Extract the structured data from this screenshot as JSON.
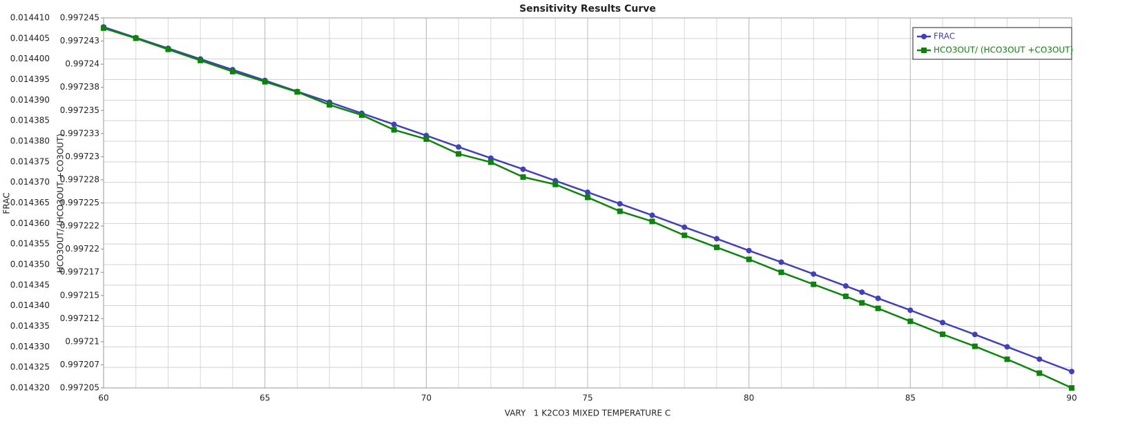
{
  "chart_data": {
    "type": "line",
    "title": "Sensitivity Results Curve",
    "x_label": "VARY   1 K2CO3 MIXED TEMPERATURE C",
    "y_label": "FRAC",
    "y2_label": "HCO3OUT/ (HCO3OUT +CO3OUT)",
    "x": [
      60,
      61,
      62,
      63,
      64,
      65,
      66,
      67,
      68,
      69,
      70,
      71,
      72,
      73,
      74,
      75,
      76,
      77,
      78,
      79,
      80,
      81,
      82,
      83,
      83.5,
      84,
      85,
      86,
      87,
      88,
      89,
      90
    ],
    "xlim": [
      60,
      90
    ],
    "xticks": [
      60,
      65,
      70,
      75,
      80,
      85,
      90
    ],
    "ylim": [
      0.01432,
      0.01441
    ],
    "yticks": [
      {
        "value": 0.01432,
        "label": "0.014320"
      },
      0.014325,
      {
        "value": 0.01433,
        "label": "0.014330"
      },
      0.014335,
      {
        "value": 0.01434,
        "label": "0.014340"
      },
      0.014345,
      {
        "value": 0.01435,
        "label": "0.014350"
      },
      0.014355,
      {
        "value": 0.01436,
        "label": "0.014360"
      },
      0.014365,
      {
        "value": 0.01437,
        "label": "0.014370"
      },
      0.014375,
      {
        "value": 0.01438,
        "label": "0.014380"
      },
      0.014385,
      {
        "value": 0.01439,
        "label": "0.014390"
      },
      0.014395,
      {
        "value": 0.0144,
        "label": "0.014400"
      },
      0.014405,
      {
        "value": 0.01441,
        "label": "0.014410"
      }
    ],
    "y2lim": [
      0.997205,
      0.997245
    ],
    "y2ticks": [
      0.997205,
      {
        "value": 0.9972075,
        "label": "0.997207"
      },
      0.99721,
      {
        "value": 0.9972125,
        "label": "0.997212"
      },
      0.997215,
      {
        "value": 0.9972175,
        "label": "0.997217"
      },
      0.99722,
      {
        "value": 0.9972225,
        "label": "0.997222"
      },
      0.997225,
      {
        "value": 0.9972275,
        "label": "0.997228"
      },
      0.99723,
      {
        "value": 0.9972325,
        "label": "0.997233"
      },
      0.997235,
      {
        "value": 0.9972375,
        "label": "0.997238"
      },
      0.99724,
      {
        "value": 0.9972425,
        "label": "0.997243"
      },
      0.997245
    ],
    "grid": true,
    "legend": "upper right",
    "series": [
      {
        "name": "FRAC",
        "color": "#3f3fbf",
        "marker": "circle",
        "values": [
          0.0144078,
          0.0144052,
          0.0144026,
          0.0144,
          0.0143974,
          0.0143948,
          0.0143921,
          0.0143895,
          0.0143868,
          0.0143841,
          0.0143814,
          0.0143786,
          0.0143759,
          0.0143732,
          0.0143704,
          0.0143676,
          0.0143648,
          0.014362,
          0.0143591,
          0.0143563,
          0.0143534,
          0.0143506,
          0.0143477,
          0.0143448,
          0.0143433,
          0.0143418,
          0.0143389,
          0.0143359,
          0.014333,
          0.01433,
          0.014327,
          0.014324
        ]
      },
      {
        "name": "HCO3OUT/ (HCO3OUT +CO3OUT)",
        "color": "#0a840a",
        "marker": "square",
        "axis": "y2",
        "values": [
          0.9972439,
          0.9972428,
          0.9972416,
          0.9972404,
          0.9972392,
          0.9972381,
          0.997237,
          0.9972356,
          0.9972345,
          0.9972329,
          0.9972319,
          0.9972303,
          0.9972294,
          0.9972278,
          0.997227,
          0.9972256,
          0.9972241,
          0.997223,
          0.9972215,
          0.9972202,
          0.9972189,
          0.9972175,
          0.9972162,
          0.9972149,
          0.9972142,
          0.9972136,
          0.9972122,
          0.9972108,
          0.9972095,
          0.9972081,
          0.9972066,
          0.997205
        ]
      }
    ]
  }
}
